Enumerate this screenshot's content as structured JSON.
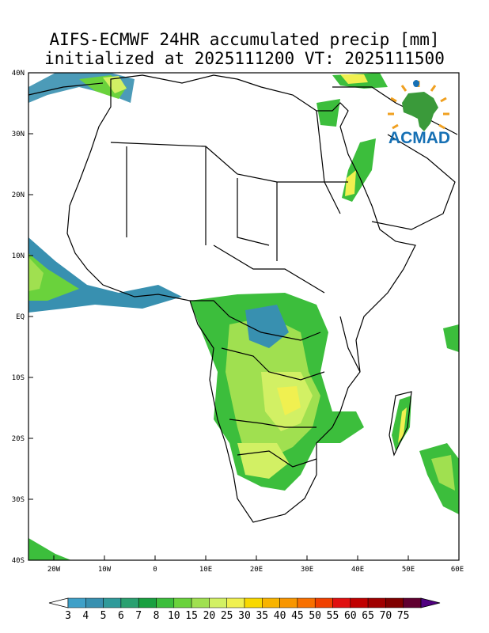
{
  "title": {
    "line1": "AIFS-ECMWF 24HR accumulated precip [mm]",
    "line2": "initialized at 2025111200 VT: 2025111500"
  },
  "map": {
    "lat_labels": [
      "40N",
      "30N",
      "20N",
      "10N",
      "EQ",
      "10S",
      "20S",
      "30S",
      "40S"
    ],
    "lon_labels": [
      "20W",
      "10W",
      "0",
      "10E",
      "20E",
      "30E",
      "40E",
      "50E",
      "60E"
    ],
    "land_color": "#ffffff",
    "boundary_color": "#000000"
  },
  "logo": {
    "text": "ACMAD",
    "text_color": "#1670b4",
    "continent_color": "#3a9a3a",
    "ray_color": "#f0a020"
  },
  "colorbar": {
    "labels": [
      "3",
      "4",
      "5",
      "6",
      "7",
      "8",
      "10",
      "15",
      "20",
      "25",
      "30",
      "35",
      "40",
      "45",
      "50",
      "55",
      "60",
      "65",
      "70",
      "75"
    ],
    "colors": [
      "#3fa0c8",
      "#3890b0",
      "#2f9a9a",
      "#2aa070",
      "#19a040",
      "#3cbe3c",
      "#6ad23c",
      "#a0e050",
      "#d2f064",
      "#f0f050",
      "#f8d800",
      "#f8b400",
      "#f89600",
      "#f87000",
      "#f04000",
      "#e01010",
      "#c00000",
      "#a00000",
      "#800000",
      "#600030",
      "#500080"
    ]
  }
}
